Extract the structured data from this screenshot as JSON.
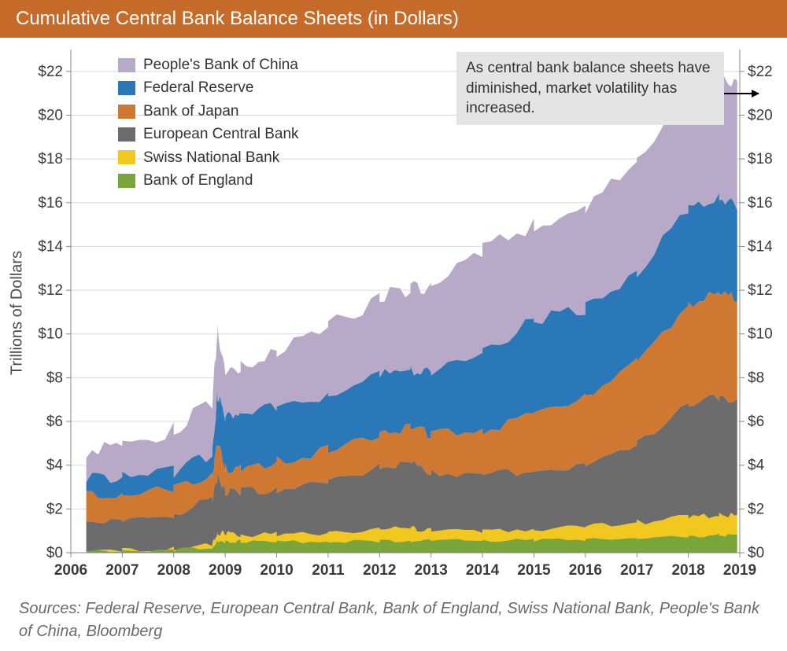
{
  "title": "Cumulative Central Bank Balance Sheets (in Dollars)",
  "title_bg": "#c76b2a",
  "title_color": "#ffffff",
  "y_axis_label": "Trillions of Dollars",
  "sources": "Sources: Federal Reserve, European Central Bank, Bank of England, Swiss National Bank, People's Bank of China, Bloomberg",
  "annotation": {
    "text": "As central bank balance sheets have diminished, market volatility has increased.",
    "bg": "#e4e4e4"
  },
  "chart": {
    "type": "stacked-area",
    "background": "#ffffff",
    "grid_color": "#d9d9d9",
    "axis_color": "#888888",
    "x": {
      "min": 2006,
      "max": 2019,
      "ticks": [
        2006,
        2007,
        2008,
        2009,
        2010,
        2011,
        2012,
        2013,
        2014,
        2015,
        2016,
        2017,
        2018,
        2019
      ],
      "fontsize": 19
    },
    "y": {
      "min": 0,
      "max": 23,
      "ticks": [
        0,
        2,
        4,
        6,
        8,
        10,
        12,
        14,
        16,
        18,
        20,
        22
      ],
      "tick_labels": [
        "$0",
        "$2",
        "$4",
        "$6",
        "$8",
        "$10",
        "$12",
        "$14",
        "$16",
        "$18",
        "$20",
        "$22"
      ],
      "fontsize": 19
    },
    "series": [
      {
        "name": "Bank of England",
        "color": "#7aa53a",
        "label": "Bank of England"
      },
      {
        "name": "Swiss National Bank",
        "color": "#f3c81e",
        "label": "Swiss National Bank"
      },
      {
        "name": "European Central Bank",
        "color": "#6c6c6c",
        "label": "European Central Bank"
      },
      {
        "name": "Bank of Japan",
        "color": "#cf7831",
        "label": "Bank of Japan"
      },
      {
        "name": "Federal Reserve",
        "color": "#2b78b8",
        "label": "Federal Reserve"
      },
      {
        "name": "People's Bank of China",
        "color": "#b9a9c8",
        "label": "People's Bank of China"
      }
    ],
    "legend_order": [
      5,
      4,
      3,
      2,
      1,
      0
    ],
    "timepoints": [
      2006.3,
      2007,
      2008,
      2008.75,
      2008.85,
      2009,
      2009.3,
      2010,
      2011,
      2012,
      2012.6,
      2013,
      2014,
      2015,
      2016,
      2017,
      2018,
      2018.6,
      2018.95
    ],
    "stacks": [
      [
        0.1,
        0.18,
        1.5,
        2.7,
        3.55,
        4.85
      ],
      [
        0.12,
        0.2,
        1.6,
        2.8,
        3.65,
        5.1
      ],
      [
        0.15,
        0.23,
        1.8,
        3.0,
        3.9,
        5.8
      ],
      [
        0.3,
        0.4,
        2.6,
        3.7,
        4.7,
        7.1
      ],
      [
        0.55,
        1.0,
        3.6,
        5.2,
        7.4,
        10.4
      ],
      [
        0.55,
        0.95,
        2.9,
        4.0,
        6.3,
        8.3
      ],
      [
        0.55,
        0.9,
        2.9,
        4.0,
        6.6,
        8.7
      ],
      [
        0.55,
        0.9,
        3.0,
        4.3,
        6.8,
        9.4
      ],
      [
        0.55,
        1.0,
        3.3,
        4.8,
        7.4,
        10.6
      ],
      [
        0.58,
        1.15,
        4.0,
        5.5,
        8.2,
        11.8
      ],
      [
        0.6,
        1.2,
        4.2,
        5.9,
        8.6,
        12.3
      ],
      [
        0.6,
        1.1,
        3.8,
        5.5,
        8.4,
        12.4
      ],
      [
        0.6,
        1.1,
        3.7,
        5.7,
        9.3,
        14.0
      ],
      [
        0.62,
        1.15,
        3.8,
        6.5,
        10.8,
        15.2
      ],
      [
        0.65,
        1.25,
        4.1,
        7.3,
        11.3,
        15.8
      ],
      [
        0.7,
        1.45,
        5.1,
        8.9,
        13.0,
        18.2
      ],
      [
        0.8,
        1.7,
        6.9,
        11.5,
        15.8,
        21.3
      ],
      [
        0.85,
        1.8,
        7.2,
        12.0,
        16.5,
        22.3
      ],
      [
        0.85,
        1.75,
        7.0,
        11.7,
        16.0,
        21.4
      ]
    ]
  }
}
